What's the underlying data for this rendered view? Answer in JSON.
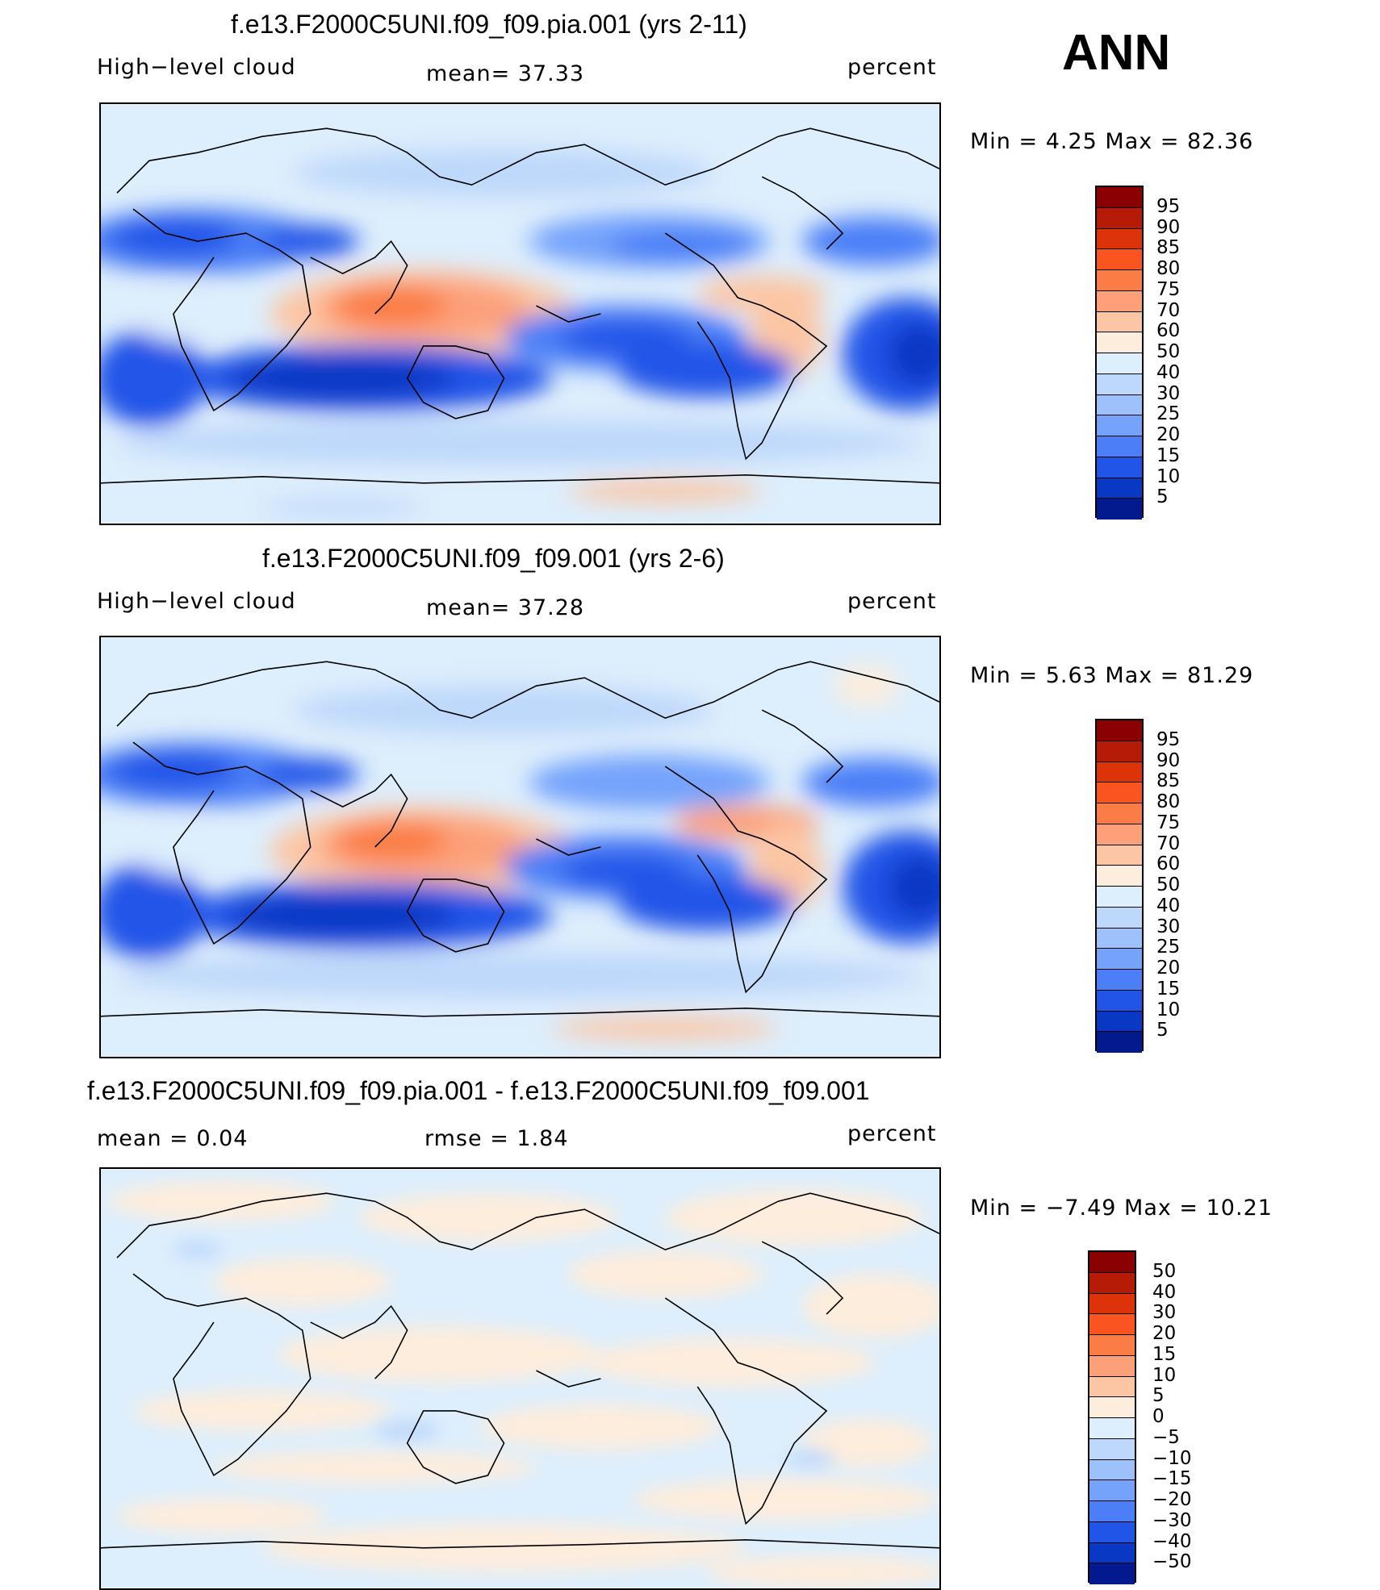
{
  "season": "ANN",
  "panels": [
    {
      "title": "f.e13.F2000C5UNI.f09_f09.pia.001 (yrs 2-11)",
      "left_label": "High−level cloud",
      "center_label": "mean=   37.33",
      "right_label": "percent",
      "minmax": "Min =     4.25  Max =    82.36"
    },
    {
      "title": "f.e13.F2000C5UNI.f09_f09.001 (yrs 2-6)",
      "left_label": "High−level cloud",
      "center_label": "mean=   37.28",
      "right_label": "percent",
      "minmax": "Min =     5.63  Max =    81.29"
    },
    {
      "title": "f.e13.F2000C5UNI.f09_f09.pia.001 - f.e13.F2000C5UNI.f09_f09.001",
      "left_label": "mean =     0.04",
      "center_label": "rmse =     1.84",
      "right_label": "percent",
      "minmax": "Min =   −7.49  Max =    10.21"
    }
  ],
  "colorbar_abs": {
    "labels": [
      "95",
      "90",
      "85",
      "80",
      "75",
      "70",
      "60",
      "50",
      "40",
      "30",
      "25",
      "20",
      "15",
      "10",
      "5"
    ],
    "colors": [
      "#8b0000",
      "#b51b06",
      "#dd3308",
      "#fa5520",
      "#fb7d45",
      "#fca07a",
      "#fcc6a4",
      "#fdeddd",
      "#ddeefc",
      "#bed8fb",
      "#9cc1fb",
      "#75a3fb",
      "#4c7ff7",
      "#2155e8",
      "#0838c4",
      "#021a8d"
    ]
  },
  "colorbar_diff": {
    "labels": [
      "50",
      "40",
      "30",
      "20",
      "15",
      "10",
      "5",
      "0",
      "−5",
      "−10",
      "−15",
      "−20",
      "−30",
      "−40",
      "−50"
    ],
    "colors": [
      "#8b0000",
      "#b51b06",
      "#dd3308",
      "#fa5520",
      "#fb7d45",
      "#fca07a",
      "#fcc6a4",
      "#fdeddd",
      "#ddeefc",
      "#bed8fb",
      "#9cc1fb",
      "#75a3fb",
      "#4c7ff7",
      "#2155e8",
      "#0838c4",
      "#021a8d"
    ]
  }
}
